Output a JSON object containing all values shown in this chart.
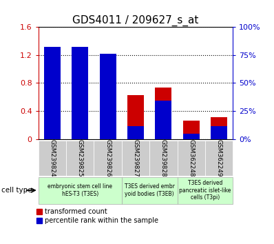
{
  "title": "GDS4011 / 209627_s_at",
  "samples": [
    "GSM239824",
    "GSM239825",
    "GSM239826",
    "GSM239827",
    "GSM239828",
    "GSM362248",
    "GSM362249"
  ],
  "transformed_count": [
    1.28,
    1.265,
    1.155,
    0.63,
    0.735,
    0.265,
    0.31
  ],
  "percentile_rank_pct": [
    82,
    82,
    76,
    11.5,
    34.5,
    4.5,
    11.5
  ],
  "ylim_left": [
    0,
    1.6
  ],
  "ylim_right": [
    0,
    100
  ],
  "yticks_left": [
    0,
    0.4,
    0.8,
    1.2,
    1.6
  ],
  "yticks_right": [
    0,
    25,
    50,
    75,
    100
  ],
  "yticklabels_left": [
    "0",
    "0.4",
    "0.8",
    "1.2",
    "1.6"
  ],
  "yticklabels_right": [
    "0%",
    "25%",
    "50%",
    "75%",
    "100%"
  ],
  "bar_color_red": "#cc0000",
  "bar_color_blue": "#0000cc",
  "cell_type_groups": [
    {
      "label": "embryonic stem cell line\nhES-T3 (T3ES)",
      "start": 0,
      "end": 3
    },
    {
      "label": "T3ES derived embr\nyoid bodies (T3EB)",
      "start": 3,
      "end": 5
    },
    {
      "label": "T3ES derived\npancreatic islet-like\ncells (T3pi)",
      "start": 5,
      "end": 7
    }
  ],
  "cell_type_label": "cell type",
  "legend_red": "transformed count",
  "legend_blue": "percentile rank within the sample",
  "bar_width": 0.6,
  "blue_bar_width": 0.6,
  "title_fontsize": 11
}
